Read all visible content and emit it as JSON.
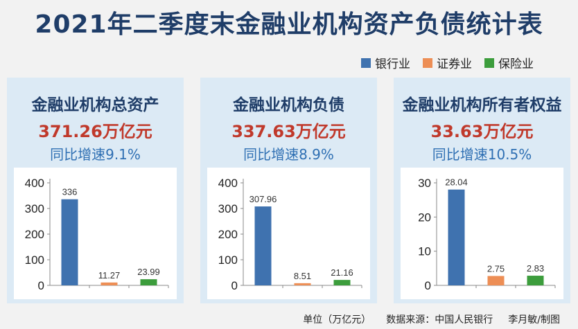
{
  "title": "2021年二季度末金融业机构资产负债统计表",
  "legend": [
    {
      "label": "银行业",
      "color": "#3f72af"
    },
    {
      "label": "证券业",
      "color": "#ed8e55"
    },
    {
      "label": "保险业",
      "color": "#3c9d3c"
    }
  ],
  "panels": [
    {
      "title": "金融业机构总资产",
      "value": "371.26万亿元",
      "growth": "同比增速9.1%"
    },
    {
      "title": "金融业机构负债",
      "value": "337.63万亿元",
      "growth": "同比增速8.9%"
    },
    {
      "title": "金融业机构所有者权益",
      "value": "33.63万亿元",
      "growth": "同比增速10.5%"
    }
  ],
  "footer": {
    "unit": "单位（万亿元）",
    "source": "数据来源：中国人民银行",
    "credit": "李月敏/制图"
  },
  "chart_data": [
    {
      "type": "bar",
      "categories": [
        "银行业",
        "证券业",
        "保险业"
      ],
      "values": [
        336,
        11.27,
        23.99
      ],
      "value_labels": [
        "336",
        "11.27",
        "23.99"
      ],
      "ylim": [
        0,
        400
      ],
      "yticks": [
        0,
        100,
        200,
        300,
        400
      ],
      "colors": [
        "#3f72af",
        "#ed8e55",
        "#3c9d3c"
      ],
      "grid": false
    },
    {
      "type": "bar",
      "categories": [
        "银行业",
        "证券业",
        "保险业"
      ],
      "values": [
        307.96,
        8.51,
        21.16
      ],
      "value_labels": [
        "307.96",
        "8.51",
        "21.16"
      ],
      "ylim": [
        0,
        400
      ],
      "yticks": [
        0,
        100,
        200,
        300,
        400
      ],
      "colors": [
        "#3f72af",
        "#ed8e55",
        "#3c9d3c"
      ],
      "grid": false
    },
    {
      "type": "bar",
      "categories": [
        "银行业",
        "证券业",
        "保险业"
      ],
      "values": [
        28.04,
        2.75,
        2.83
      ],
      "value_labels": [
        "28.04",
        "2.75",
        "2.83"
      ],
      "ylim": [
        0,
        30
      ],
      "yticks": [
        0,
        10,
        20,
        30
      ],
      "colors": [
        "#3f72af",
        "#ed8e55",
        "#3c9d3c"
      ],
      "grid": false
    }
  ]
}
